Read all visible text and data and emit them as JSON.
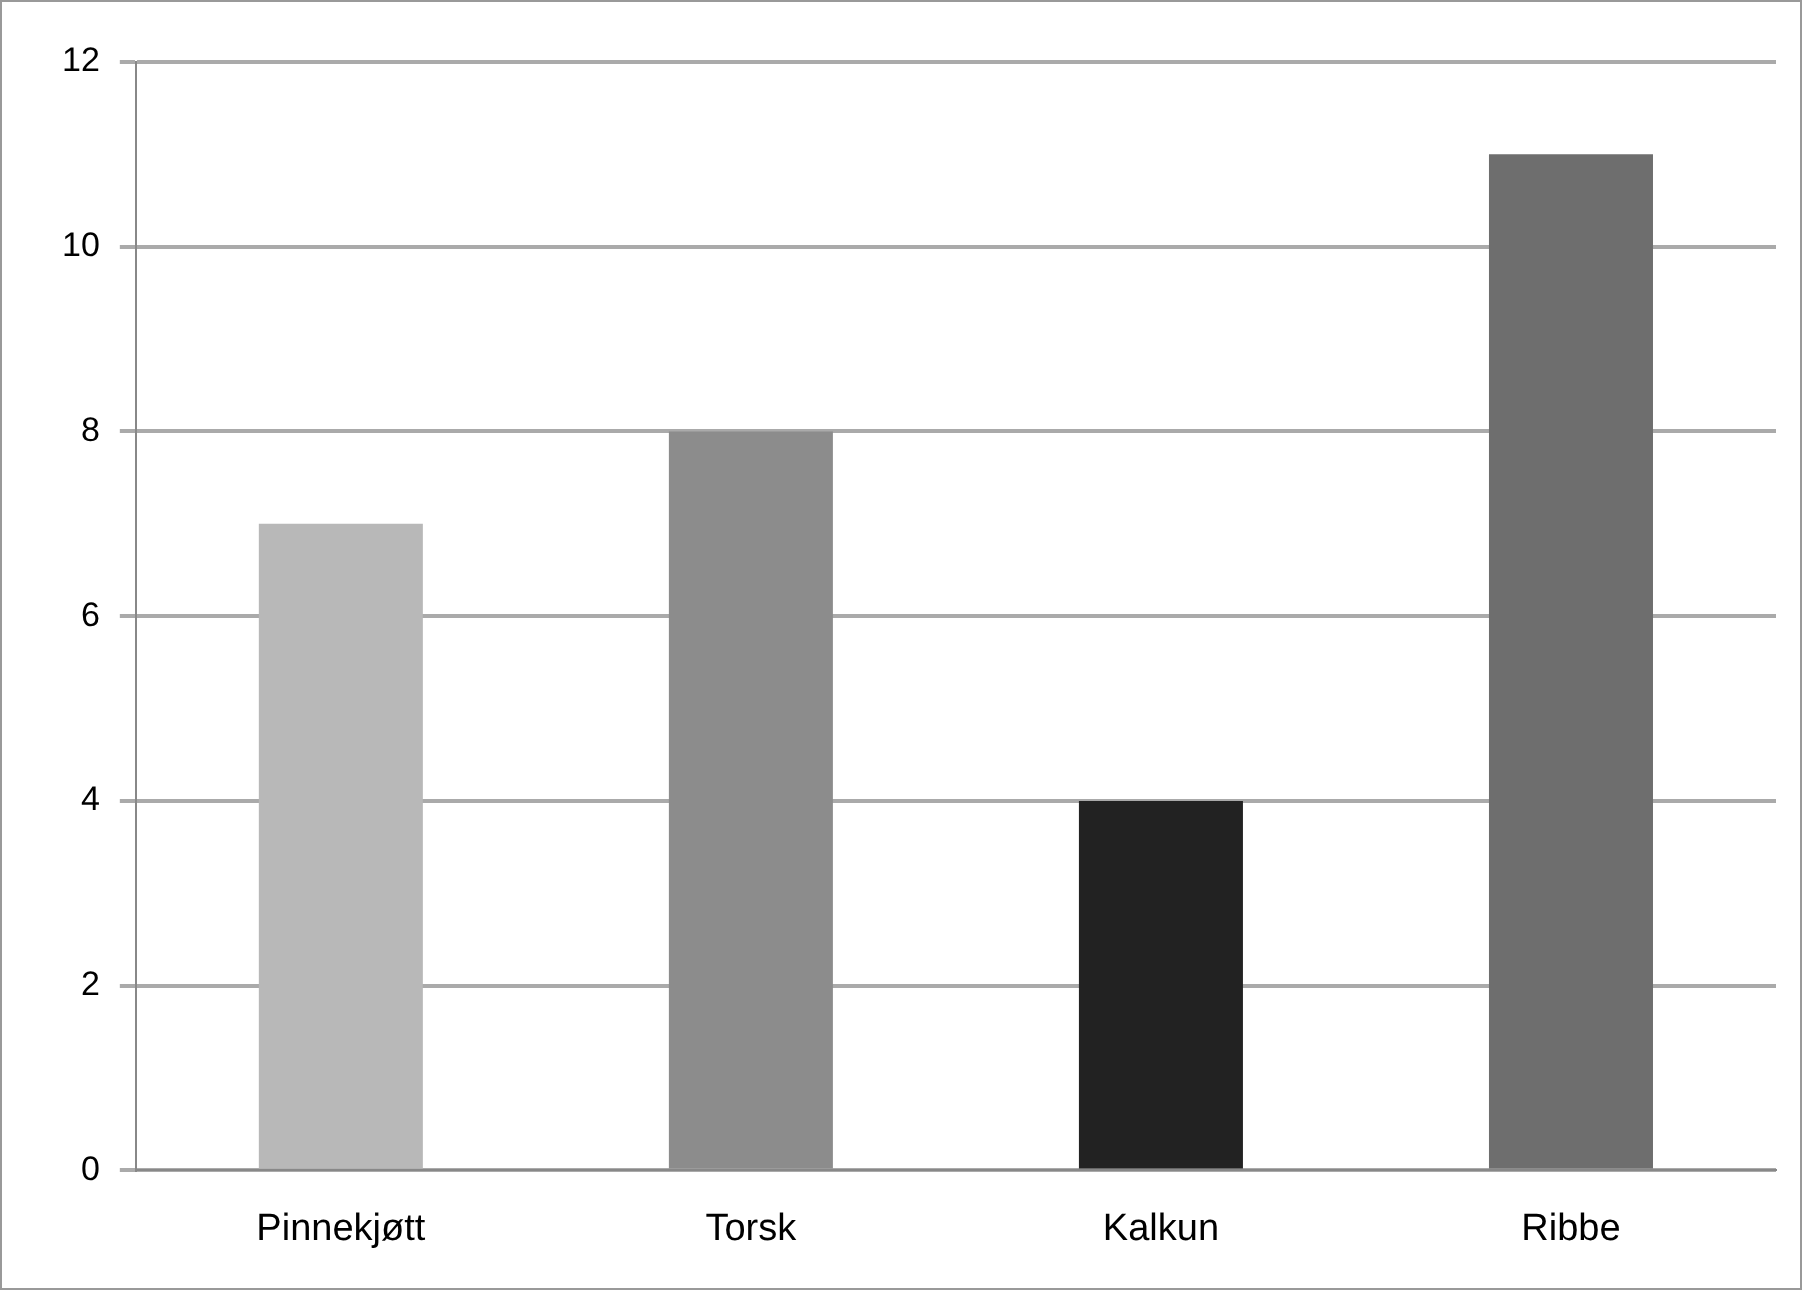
{
  "chart_data": {
    "type": "bar",
    "categories": [
      "Pinnekjøtt",
      "Torsk",
      "Kalkun",
      "Ribbe"
    ],
    "values": [
      7,
      8,
      4,
      11
    ],
    "colors": [
      "#b8b8b8",
      "#8c8c8c",
      "#222222",
      "#6e6e6e"
    ],
    "ylim": [
      0,
      12
    ],
    "yticks": [
      0,
      2,
      4,
      6,
      8,
      10,
      12
    ],
    "grid": "y",
    "legend": false
  }
}
